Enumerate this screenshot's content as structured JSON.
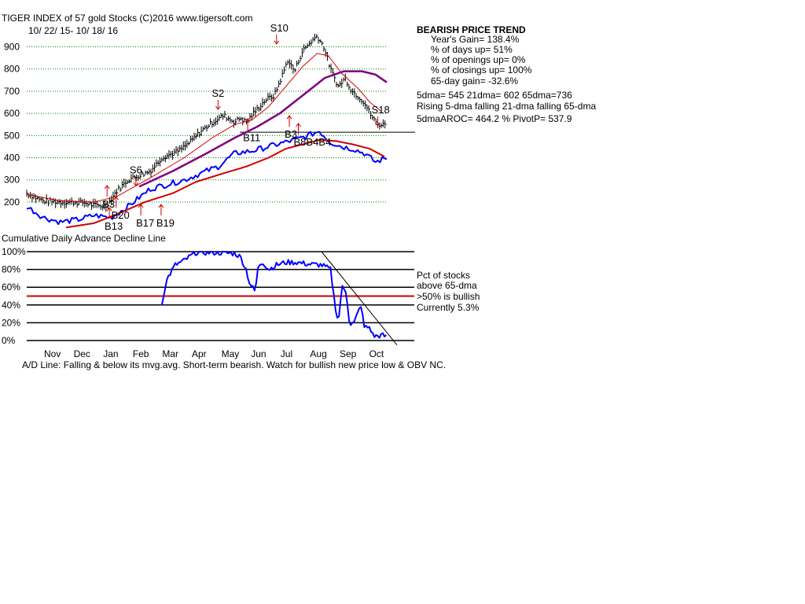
{
  "header": {
    "title": "TIGER INDEX of  57 gold Stocks  (C)2016   www.tigersoft.com",
    "date_range": "10/ 22/ 15-  10/ 18/ 16"
  },
  "stats": {
    "trend": "BEARISH PRICE TREND",
    "years_gain": "Year's Gain= 138.4%",
    "days_up": "% of days up= 51%",
    "openings_up": "% of openings up= 0%",
    "closings_up": "% of closings up= 100%",
    "day65_gain": "65-day gain= -32.6%",
    "dma_values": "5dma= 545 21dma= 602 65dma=736",
    "dma_direction": "Rising 5-dma falling 21-dma falling 65-dma",
    "aroc_pivot": "5dmaAROC= 464.2 %  PivotP= 537.9"
  },
  "lower_panel": {
    "title": "Cumulative Daily Advance Decline Line",
    "legend_1": "Pct of stocks",
    "legend_2": "above 65-dma",
    "legend_3": ">50% is bullish",
    "legend_4": "Currently  5.3%"
  },
  "footer": {
    "note": "A/D Line: Falling & below its mvg.avg. Short-term bearish. Watch for bullish new price low & OBV NC."
  },
  "colors": {
    "price": "#000000",
    "ma21": "#dd0000",
    "ma65": "#800080",
    "ad_line": "#0000ff",
    "ad_ma": "#cc0000",
    "pct_line": "#0000ff",
    "grid": "#008000",
    "buy_arrow": "#cc0000",
    "sell_arrow": "#cc0000"
  },
  "chart_data": [
    {
      "type": "line",
      "name": "Tiger Index price (daily high-low bars) with moving averages",
      "title": "TIGER INDEX of  57 gold Stocks",
      "ylim": [
        150,
        980
      ],
      "yticks": [
        200,
        300,
        400,
        500,
        600,
        700,
        800,
        900
      ],
      "x_months": [
        "Nov",
        "Dec",
        "Jan",
        "Feb",
        "Mar",
        "Apr",
        "May",
        "Jun",
        "Jul",
        "Aug",
        "Sep",
        "Oct"
      ],
      "price_path": [
        [
          0,
          240
        ],
        [
          8,
          220
        ],
        [
          15,
          205
        ],
        [
          30,
          200
        ],
        [
          50,
          198
        ],
        [
          60,
          185
        ],
        [
          70,
          180
        ],
        [
          80,
          250
        ],
        [
          90,
          300
        ],
        [
          100,
          320
        ],
        [
          110,
          340
        ],
        [
          120,
          400
        ],
        [
          130,
          420
        ],
        [
          135,
          430
        ],
        [
          145,
          470
        ],
        [
          155,
          520
        ],
        [
          165,
          560
        ],
        [
          175,
          590
        ],
        [
          185,
          560
        ],
        [
          190,
          580
        ],
        [
          195,
          560
        ],
        [
          205,
          620
        ],
        [
          212,
          660
        ],
        [
          220,
          680
        ],
        [
          227,
          770
        ],
        [
          232,
          840
        ],
        [
          238,
          790
        ],
        [
          245,
          880
        ],
        [
          252,
          920
        ],
        [
          258,
          950
        ],
        [
          264,
          900
        ],
        [
          270,
          800
        ],
        [
          277,
          720
        ],
        [
          283,
          760
        ],
        [
          289,
          700
        ],
        [
          294,
          680
        ],
        [
          300,
          650
        ],
        [
          305,
          600
        ],
        [
          310,
          560
        ],
        [
          316,
          545
        ],
        [
          320,
          565
        ]
      ],
      "series": [
        {
          "name": "21-dma",
          "values": [
            [
              0,
              235
            ],
            [
              30,
              205
            ],
            [
              60,
              200
            ],
            [
              80,
              225
            ],
            [
              110,
              310
            ],
            [
              140,
              400
            ],
            [
              165,
              490
            ],
            [
              185,
              550
            ],
            [
              200,
              570
            ],
            [
              215,
              630
            ],
            [
              230,
              720
            ],
            [
              245,
              810
            ],
            [
              258,
              870
            ],
            [
              268,
              860
            ],
            [
              280,
              780
            ],
            [
              295,
              710
            ],
            [
              305,
              650
            ],
            [
              315,
              610
            ]
          ]
        },
        {
          "name": "65-dma",
          "values": [
            [
              100,
              270
            ],
            [
              130,
              340
            ],
            [
              160,
              420
            ],
            [
              185,
              490
            ],
            [
              205,
              540
            ],
            [
              225,
              600
            ],
            [
              245,
              680
            ],
            [
              265,
              760
            ],
            [
              282,
              790
            ],
            [
              298,
              790
            ],
            [
              310,
              775
            ],
            [
              320,
              740
            ]
          ]
        },
        {
          "name": "A/D line",
          "values": [
            [
              0,
              180
            ],
            [
              15,
              130
            ],
            [
              30,
              110
            ],
            [
              45,
              120
            ],
            [
              60,
              140
            ],
            [
              75,
              130
            ],
            [
              90,
              180
            ],
            [
              110,
              260
            ],
            [
              140,
              300
            ],
            [
              170,
              360
            ],
            [
              185,
              420
            ],
            [
              200,
              430
            ],
            [
              215,
              450
            ],
            [
              230,
              470
            ],
            [
              245,
              490
            ],
            [
              260,
              520
            ],
            [
              270,
              470
            ],
            [
              280,
              450
            ],
            [
              290,
              440
            ],
            [
              300,
              420
            ],
            [
              310,
              380
            ],
            [
              320,
              400
            ]
          ]
        },
        {
          "name": "A/D 21-day mvg.avg.",
          "values": [
            [
              35,
              85
            ],
            [
              60,
              105
            ],
            [
              80,
              145
            ],
            [
              105,
              200
            ],
            [
              130,
              240
            ],
            [
              150,
              290
            ],
            [
              175,
              330
            ],
            [
              195,
              360
            ],
            [
              215,
              400
            ],
            [
              230,
              440
            ],
            [
              245,
              460
            ],
            [
              260,
              480
            ],
            [
              275,
              475
            ],
            [
              290,
              460
            ],
            [
              305,
              440
            ],
            [
              318,
              405
            ]
          ]
        }
      ],
      "pivot_line": 515,
      "signals": [
        {
          "label": "S10",
          "day": 222,
          "value": 970,
          "kind": "sell"
        },
        {
          "label": "S2",
          "day": 170,
          "value": 675,
          "kind": "sell"
        },
        {
          "label": "S6",
          "day": 97,
          "value": 330,
          "kind": "sell"
        },
        {
          "label": "S18",
          "day": 312,
          "value": 600,
          "kind": "sell"
        },
        {
          "label": "B3",
          "day": 232,
          "value": 490,
          "kind": "buy"
        },
        {
          "label": "B11",
          "day": 195,
          "value": 475,
          "kind": "buy"
        },
        {
          "label": "B8B4B4",
          "day": 240,
          "value": 455,
          "kind": "buy"
        },
        {
          "label": "B3",
          "day": 70,
          "value": 175,
          "kind": "buy"
        },
        {
          "label": "B20",
          "day": 78,
          "value": 125,
          "kind": "buy"
        },
        {
          "label": "B13",
          "day": 72,
          "value": 75,
          "kind": "buy"
        },
        {
          "label": "B17",
          "day": 100,
          "value": 90,
          "kind": "buy"
        },
        {
          "label": "B19",
          "day": 118,
          "value": 90,
          "kind": "buy"
        }
      ]
    },
    {
      "type": "line",
      "name": "Pct of stocks above 65-dma",
      "ylim": [
        0,
        100
      ],
      "yticks": [
        "100%",
        "80%",
        "60%",
        "40%",
        "20%",
        "0%"
      ],
      "x_months": [
        "Nov",
        "Dec",
        "Jan",
        "Feb",
        "Mar",
        "Apr",
        "May",
        "Jun",
        "Jul",
        "Aug",
        "Sep",
        "Oct"
      ],
      "reference_line": 50,
      "current": 5.3,
      "values": [
        [
          120,
          40
        ],
        [
          122,
          55
        ],
        [
          125,
          70
        ],
        [
          132,
          85
        ],
        [
          140,
          90
        ],
        [
          150,
          99
        ],
        [
          170,
          99
        ],
        [
          185,
          98
        ],
        [
          190,
          94
        ],
        [
          195,
          80
        ],
        [
          198,
          65
        ],
        [
          203,
          55
        ],
        [
          206,
          85
        ],
        [
          210,
          88
        ],
        [
          215,
          80
        ],
        [
          222,
          85
        ],
        [
          230,
          88
        ],
        [
          240,
          88
        ],
        [
          250,
          86
        ],
        [
          262,
          85
        ],
        [
          270,
          80
        ],
        [
          274,
          40
        ],
        [
          277,
          20
        ],
        [
          280,
          60
        ],
        [
          284,
          55
        ],
        [
          287,
          18
        ],
        [
          291,
          20
        ],
        [
          297,
          40
        ],
        [
          300,
          15
        ],
        [
          305,
          15
        ],
        [
          308,
          5
        ],
        [
          312,
          5
        ],
        [
          316,
          6
        ],
        [
          320,
          4
        ]
      ]
    }
  ]
}
